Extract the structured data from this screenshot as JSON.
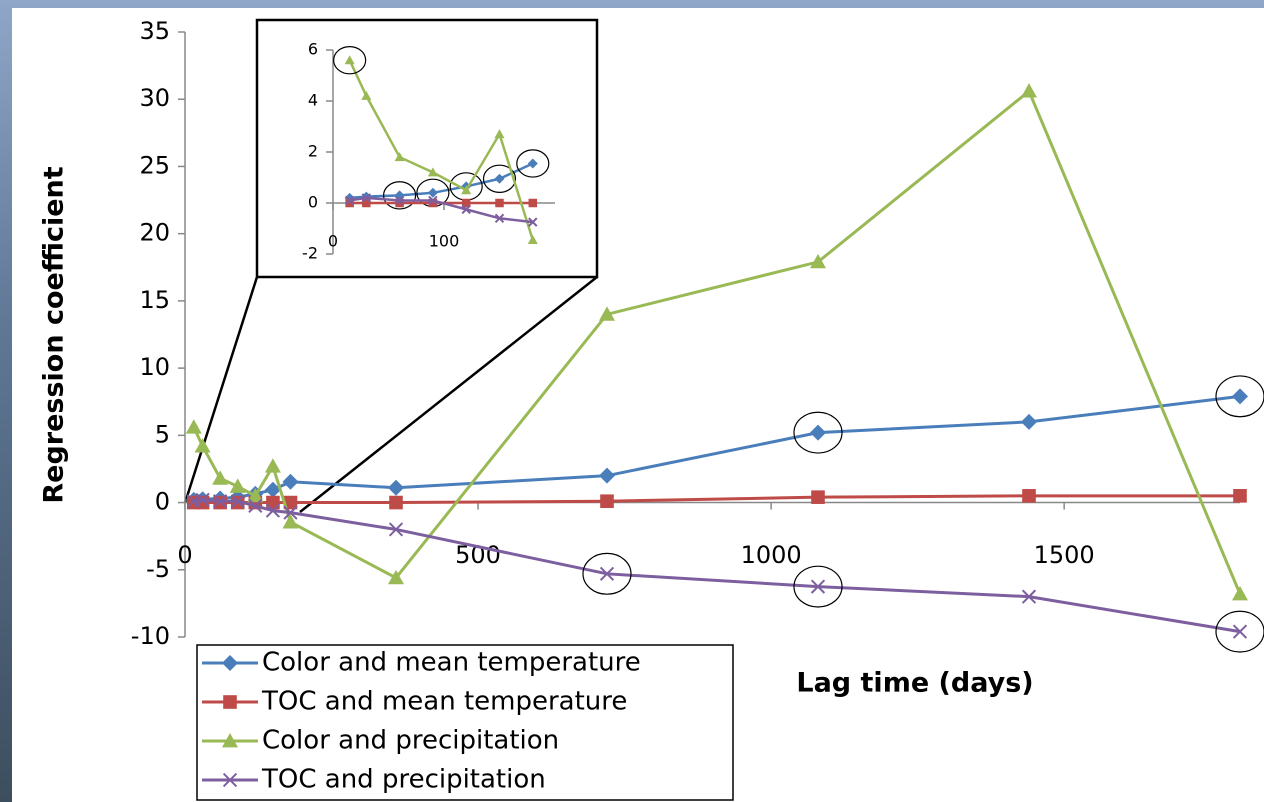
{
  "chart_data": {
    "type": "line",
    "y_label": "Regression coefficient",
    "x_label": "Lag time (days)",
    "x": [
      15,
      30,
      60,
      90,
      120,
      150,
      180,
      360,
      720,
      1080,
      1440,
      1800
    ],
    "xlim": [
      0,
      1800
    ],
    "ylim": [
      -10,
      35
    ],
    "xticks": [
      0,
      500,
      1000,
      1500
    ],
    "yticks": [
      -10,
      -5,
      0,
      5,
      10,
      15,
      20,
      25,
      30,
      35
    ],
    "inset": {
      "xlim": [
        0,
        200
      ],
      "ylim": [
        -2,
        6
      ],
      "xticks": [
        0,
        100
      ],
      "yticks": [
        -2,
        0,
        2,
        4,
        6
      ]
    },
    "series": [
      {
        "name": "Color and mean temperature",
        "color": "#4a7ebb",
        "marker": "diamond",
        "values": [
          0.2,
          0.25,
          0.3,
          0.4,
          0.65,
          0.95,
          1.55,
          1.1,
          2.0,
          5.2,
          6.0,
          7.9
        ],
        "circled": [
          9,
          11
        ],
        "inset_circled": [
          2,
          3,
          4,
          5,
          6
        ]
      },
      {
        "name": "TOC and mean temperature",
        "color": "#be4b48",
        "marker": "square",
        "values": [
          0,
          0,
          0,
          0,
          0,
          0,
          0,
          0,
          0.1,
          0.4,
          0.5,
          0.5
        ],
        "circled": [],
        "inset_circled": []
      },
      {
        "name": "Color and precipitation",
        "color": "#98b954",
        "marker": "triangle",
        "values": [
          5.6,
          4.2,
          1.8,
          1.2,
          0.5,
          2.7,
          -1.45,
          -5.6,
          14.0,
          17.9,
          30.6,
          -6.8
        ],
        "circled": [],
        "inset_circled": [
          0
        ]
      },
      {
        "name": "TOC and precipitation",
        "color": "#7d5fa0",
        "marker": "x",
        "values": [
          0.1,
          0.2,
          0.1,
          0.1,
          -0.25,
          -0.6,
          -0.75,
          -2.0,
          -5.3,
          -6.25,
          -7.0,
          -9.6
        ],
        "circled": [
          8,
          9,
          11
        ],
        "inset_circled": []
      }
    ]
  }
}
